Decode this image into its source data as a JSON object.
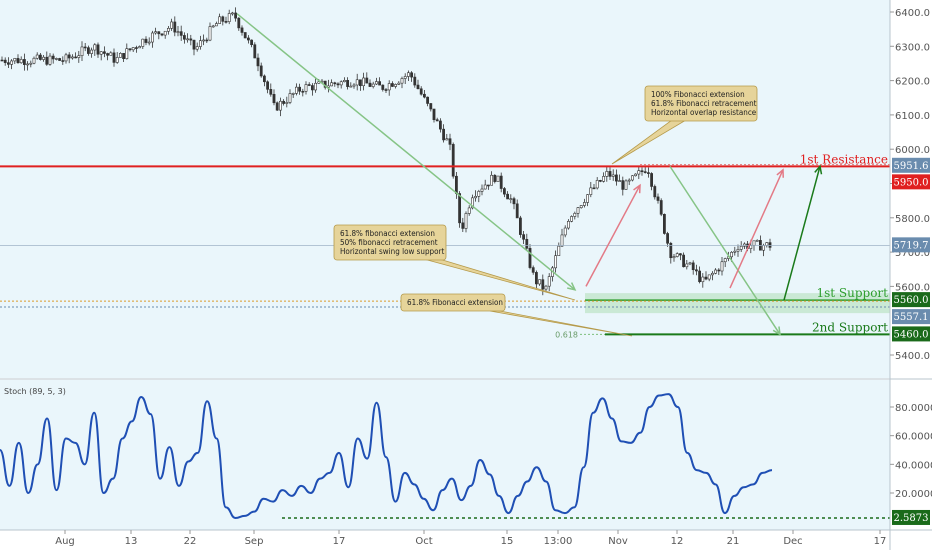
{
  "chart_data": [
    {
      "type": "candlestick",
      "title": "",
      "xlabel": "",
      "ylabel": "",
      "ylim": [
        5300,
        6450
      ],
      "x_ticks": [
        "Aug",
        "13",
        "22",
        "Sep",
        "17",
        "Oct",
        "15",
        "13:00",
        "Nov",
        "12",
        "21",
        "Dec",
        "17"
      ],
      "y_ticks": [
        "6400.0",
        "6300.0",
        "6200.0",
        "6100.0",
        "6000.0",
        "5900.0",
        "5800.0",
        "5700.0",
        "5600.0",
        "5400.0"
      ],
      "series": [
        {
          "x": [
            "Aug 1",
            "Aug 6",
            "Aug 10",
            "Aug 15",
            "Aug 20",
            "Aug 24",
            "Aug 28",
            "Aug 31",
            "Sep 4",
            "Sep 7",
            "Sep 12",
            "Sep 17",
            "Sep 21",
            "Sep 26",
            "Oct 1",
            "Oct 4",
            "Oct 8",
            "Oct 10",
            "Oct 12",
            "Oct 16",
            "Oct 19",
            "Oct 23",
            "Oct 25",
            "Oct 29",
            "Nov 1",
            "Nov 5",
            "Nov 8",
            "Nov 12",
            "Nov 14",
            "Nov 16",
            "Nov 20",
            "Nov 22",
            "Nov 26",
            "Nov 28"
          ],
          "values": [
            6260,
            6300,
            6260,
            6320,
            6360,
            6290,
            6370,
            6390,
            6260,
            6120,
            6180,
            6190,
            6200,
            6180,
            6220,
            6130,
            6010,
            5760,
            5870,
            5920,
            5850,
            5620,
            5590,
            5800,
            5860,
            5930,
            5890,
            5950,
            5830,
            5700,
            5650,
            5610,
            5680,
            5720
          ]
        }
      ],
      "levels": [
        {
          "name": "1st Resistance",
          "value": 5950.0,
          "color": "#e02020"
        },
        {
          "name": "1st Support",
          "value": 5560.0,
          "color": "#2e9e2e"
        },
        {
          "name": "2nd Support",
          "value": 5460.0,
          "color": "#1a7a1a"
        }
      ],
      "price_tags": [
        {
          "value": 5951.6,
          "label": "5951.6",
          "color": "#6a8cae"
        },
        {
          "value": 5950.0,
          "label": "5950.0",
          "color": "#e02020"
        },
        {
          "value": 5719.7,
          "label": "5719.7",
          "color": "#6a8cae"
        },
        {
          "value": 5560.0,
          "label": "5560.0",
          "color": "#1a6a1a"
        },
        {
          "value": 5557.1,
          "label": "5557.1",
          "color": "#6a8cae"
        },
        {
          "value": 5460.0,
          "label": "5460.0",
          "color": "#1a6a1a"
        }
      ],
      "annotations": [
        {
          "lines": [
            "100% Fibonacci extension",
            "61.8% Fibonacci retracement",
            "Horizontal overlap resistance"
          ]
        },
        {
          "lines": [
            "61.8% fibonacci extension",
            "50% fibonacci retracement",
            "Horizontal swing low support"
          ]
        },
        {
          "lines": [
            "61.8% Fibonacci extension"
          ]
        }
      ],
      "fib_label": "0.618",
      "grid": false
    },
    {
      "type": "line",
      "title": "Stoch (89, 5, 3)",
      "ylim": [
        0,
        100
      ],
      "y_ticks": [
        "80.0000",
        "60.0000",
        "40.0000",
        "20.0000"
      ],
      "series": [
        {
          "name": "Stoch (89, 5, 3)",
          "values": [
            50,
            25,
            55,
            20,
            40,
            72,
            22,
            58,
            55,
            40,
            76,
            20,
            30,
            58,
            70,
            87,
            75,
            30,
            52,
            25,
            42,
            48,
            84,
            58,
            10,
            2.6,
            4,
            7,
            16,
            14,
            22,
            18,
            25,
            20,
            30,
            34,
            48,
            24,
            58,
            44,
            83,
            45,
            14,
            34,
            26,
            16,
            8,
            22,
            30,
            15,
            25,
            43,
            33,
            18,
            6,
            18,
            28,
            38,
            28,
            8,
            6,
            10,
            38,
            76,
            86,
            72,
            56,
            55,
            62,
            80,
            88,
            89,
            80,
            48,
            36,
            34,
            26,
            6,
            18,
            24,
            26,
            34,
            36
          ]
        }
      ],
      "levels": [
        {
          "value": 2.5873,
          "label": "2.5873",
          "color": "#1a6a1a"
        }
      ],
      "grid": false
    }
  ]
}
